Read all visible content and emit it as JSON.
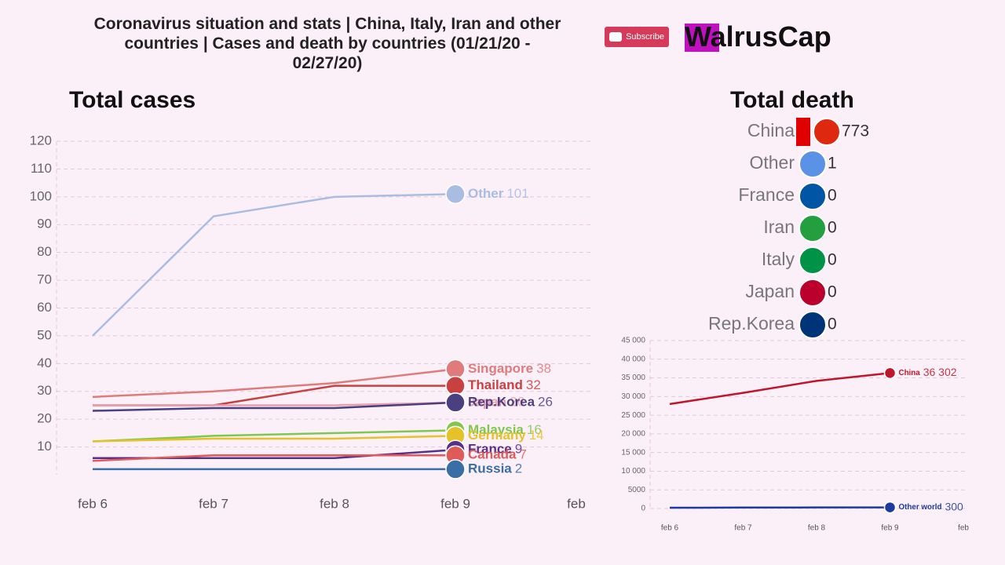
{
  "header": {
    "title": "Coronavirus situation and stats | China, Italy, Iran and other countries | Cases and death by countries (01/21/20 - 02/27/20)",
    "subscribe": "Subscribe",
    "brand": "WalrusCap"
  },
  "chart_data": [
    {
      "type": "line",
      "title": "Total cases",
      "categories": [
        "feb 6",
        "feb 7",
        "feb 8",
        "feb 9",
        "feb"
      ],
      "ylim": [
        0,
        120
      ],
      "yticks": [
        10,
        20,
        30,
        40,
        50,
        60,
        70,
        80,
        90,
        100,
        110,
        120
      ],
      "grid": true,
      "series": [
        {
          "name": "Other",
          "color": "#a9bde3",
          "values": [
            50,
            93,
            100,
            101,
            null
          ]
        },
        {
          "name": "Singapore",
          "color": "#e07b7b",
          "values": [
            28,
            30,
            33,
            38,
            null
          ]
        },
        {
          "name": "Thailand",
          "color": "#c94040",
          "values": [
            25,
            25,
            32,
            32,
            null
          ]
        },
        {
          "name": "Japan",
          "color": "#e8a0b0",
          "values": [
            25,
            25,
            25,
            26,
            null
          ]
        },
        {
          "name": "Rep.Korea",
          "color": "#4a3f7f",
          "values": [
            23,
            24,
            24,
            26,
            null
          ]
        },
        {
          "name": "Malaysia",
          "color": "#7ec850",
          "values": [
            12,
            14,
            15,
            16,
            null
          ]
        },
        {
          "name": "Germany",
          "color": "#e6c229",
          "values": [
            12,
            13,
            13,
            14,
            null
          ]
        },
        {
          "name": "France",
          "color": "#5a2f8a",
          "values": [
            6,
            6,
            6,
            9,
            null
          ]
        },
        {
          "name": "Canada",
          "color": "#e05a5a",
          "values": [
            5,
            7,
            7,
            7,
            null
          ]
        },
        {
          "name": "Russia",
          "color": "#3a6ea5",
          "values": [
            2,
            2,
            2,
            2,
            null
          ]
        }
      ]
    },
    {
      "type": "ranking",
      "title": "Total death",
      "categories": [
        "China",
        "Other",
        "France",
        "Iran",
        "Italy",
        "Japan",
        "Rep.Korea"
      ],
      "values": [
        773,
        1,
        0,
        0,
        0,
        0,
        0
      ],
      "color": "#e00000",
      "colors": [
        "#de2910",
        "#5b92e5",
        "#0055a4",
        "#239f40",
        "#009246",
        "#bc002d",
        "#003478"
      ]
    },
    {
      "type": "line",
      "categories": [
        "feb 6",
        "feb 7",
        "feb 8",
        "feb 9",
        "feb"
      ],
      "ylim": [
        0,
        45000
      ],
      "grid": true,
      "yticks": [
        0,
        5000,
        {
          "value": 10000,
          "label": "10 000"
        },
        {
          "value": 15000,
          "label": "15 000"
        },
        {
          "value": 20000,
          "label": "20 000"
        },
        {
          "value": 25000,
          "label": "25 000"
        },
        {
          "value": 30000,
          "label": "30 000"
        },
        {
          "value": 35000,
          "label": "35 000"
        },
        {
          "value": 40000,
          "label": "40 000"
        },
        {
          "value": 45000,
          "label": "45 000"
        }
      ],
      "series": [
        {
          "name": "China",
          "color": "#c0152a",
          "values": [
            28000,
            31000,
            34200,
            36302,
            null
          ],
          "value_labels": [
            null,
            null,
            null,
            "36 302",
            null
          ]
        },
        {
          "name": "Other world",
          "color": "#1f3a9e",
          "values": [
            200,
            250,
            280,
            300,
            null
          ]
        }
      ]
    }
  ]
}
